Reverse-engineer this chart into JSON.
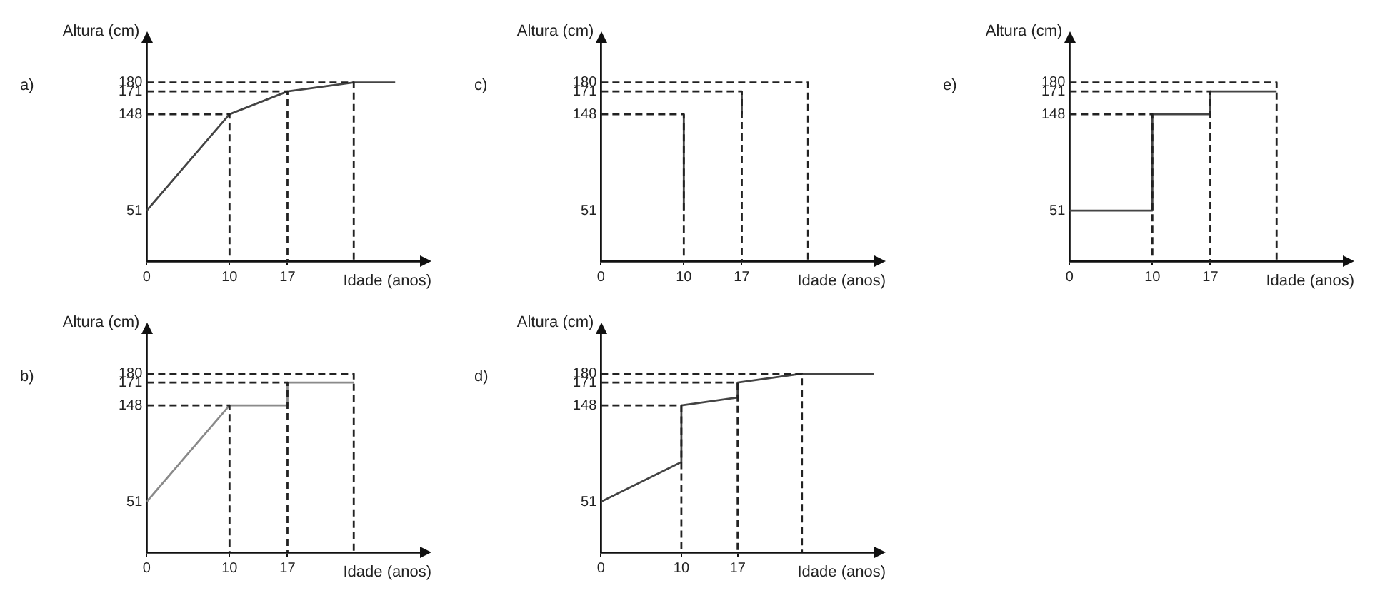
{
  "chart_data": [
    {
      "type": "line",
      "title": "a)",
      "xlabel": "Idade (anos)",
      "ylabel": "Altura (cm)",
      "xlim": [
        0,
        33
      ],
      "ylim": [
        0,
        220
      ],
      "xticks": [
        0,
        10,
        17
      ],
      "yticks": [
        51,
        148,
        171,
        180
      ],
      "grid": false,
      "legend": false,
      "marker": "none",
      "series": [
        {
          "x": [
            0,
            25,
            25
          ],
          "values": [
            180,
            180,
            0
          ],
          "color": "#222222",
          "line_style": "dashed"
        },
        {
          "x": [
            0,
            17,
            17
          ],
          "values": [
            171,
            171,
            0
          ],
          "color": "#222222",
          "line_style": "dashed"
        },
        {
          "x": [
            0,
            10,
            10
          ],
          "values": [
            148,
            148,
            0
          ],
          "color": "#222222",
          "line_style": "dashed"
        },
        {
          "x": [
            0,
            10,
            17,
            25,
            30
          ],
          "values": [
            51,
            148,
            171,
            180,
            180
          ],
          "color": "#444444",
          "line_style": "solid"
        }
      ]
    },
    {
      "type": "line",
      "title": "b)",
      "xlabel": "Idade (anos)",
      "ylabel": "Altura (cm)",
      "xlim": [
        0,
        33
      ],
      "ylim": [
        0,
        220
      ],
      "xticks": [
        0,
        10,
        17
      ],
      "yticks": [
        51,
        148,
        171,
        180
      ],
      "grid": false,
      "legend": false,
      "marker": "none",
      "series": [
        {
          "x": [
            0,
            25,
            25
          ],
          "values": [
            180,
            180,
            0
          ],
          "color": "#222222",
          "line_style": "dashed"
        },
        {
          "x": [
            0,
            17,
            17
          ],
          "values": [
            171,
            171,
            0
          ],
          "color": "#222222",
          "line_style": "dashed"
        },
        {
          "x": [
            0,
            10,
            10
          ],
          "values": [
            148,
            148,
            0
          ],
          "color": "#222222",
          "line_style": "dashed"
        },
        {
          "x": [
            0,
            10,
            17,
            17,
            25
          ],
          "values": [
            51,
            148,
            148,
            171,
            171
          ],
          "color": "#8a8a8a",
          "line_style": "solid"
        }
      ]
    },
    {
      "type": "line",
      "title": "c)",
      "xlabel": "Idade (anos)",
      "ylabel": "Altura (cm)",
      "xlim": [
        0,
        33
      ],
      "ylim": [
        0,
        220
      ],
      "xticks": [
        0,
        10,
        17
      ],
      "yticks": [
        51,
        148,
        171,
        180
      ],
      "grid": false,
      "legend": false,
      "marker": "none",
      "series": [
        {
          "x": [
            0,
            25,
            25
          ],
          "values": [
            180,
            180,
            0
          ],
          "color": "#222222",
          "line_style": "dashed"
        },
        {
          "x": [
            0,
            17,
            17
          ],
          "values": [
            171,
            171,
            0
          ],
          "color": "#222222",
          "line_style": "dashed"
        },
        {
          "x": [
            0,
            10,
            10
          ],
          "values": [
            148,
            148,
            0
          ],
          "color": "#222222",
          "line_style": "dashed"
        },
        {
          "x": [
            10,
            10
          ],
          "values": [
            51,
            148
          ],
          "color": "#444444",
          "line_style": "solid"
        },
        {
          "x": [
            17,
            17
          ],
          "values": [
            148,
            171
          ],
          "color": "#444444",
          "line_style": "solid"
        }
      ]
    },
    {
      "type": "line",
      "title": "d)",
      "xlabel": "Idade (anos)",
      "ylabel": "Altura (cm)",
      "xlim": [
        0,
        34
      ],
      "ylim": [
        0,
        220
      ],
      "xticks": [
        0,
        10,
        17
      ],
      "yticks": [
        51,
        148,
        171,
        180
      ],
      "grid": false,
      "legend": false,
      "marker": "none",
      "series": [
        {
          "x": [
            0,
            25,
            25
          ],
          "values": [
            180,
            180,
            0
          ],
          "color": "#222222",
          "line_style": "dashed"
        },
        {
          "x": [
            0,
            17,
            17
          ],
          "values": [
            171,
            171,
            0
          ],
          "color": "#222222",
          "line_style": "dashed"
        },
        {
          "x": [
            0,
            10,
            10
          ],
          "values": [
            148,
            148,
            0
          ],
          "color": "#222222",
          "line_style": "dashed"
        },
        {
          "x": [
            0,
            10,
            10,
            17,
            17,
            25,
            34
          ],
          "values": [
            51,
            91,
            148,
            156,
            171,
            180,
            180
          ],
          "color": "#444444",
          "line_style": "solid"
        }
      ]
    },
    {
      "type": "line",
      "title": "e)",
      "xlabel": "Idade (anos)",
      "ylabel": "Altura (cm)",
      "xlim": [
        0,
        33
      ],
      "ylim": [
        0,
        220
      ],
      "xticks": [
        0,
        10,
        17
      ],
      "yticks": [
        51,
        148,
        171,
        180
      ],
      "grid": false,
      "legend": false,
      "marker": "none",
      "series": [
        {
          "x": [
            0,
            25,
            25
          ],
          "values": [
            180,
            180,
            0
          ],
          "color": "#222222",
          "line_style": "dashed"
        },
        {
          "x": [
            0,
            17,
            17
          ],
          "values": [
            171,
            171,
            0
          ],
          "color": "#222222",
          "line_style": "dashed"
        },
        {
          "x": [
            0,
            10,
            10
          ],
          "values": [
            148,
            148,
            0
          ],
          "color": "#222222",
          "line_style": "dashed"
        },
        {
          "x": [
            0,
            10,
            10,
            17,
            17,
            25
          ],
          "values": [
            51,
            51,
            148,
            148,
            171,
            171
          ],
          "color": "#444444",
          "line_style": "solid"
        }
      ]
    }
  ]
}
